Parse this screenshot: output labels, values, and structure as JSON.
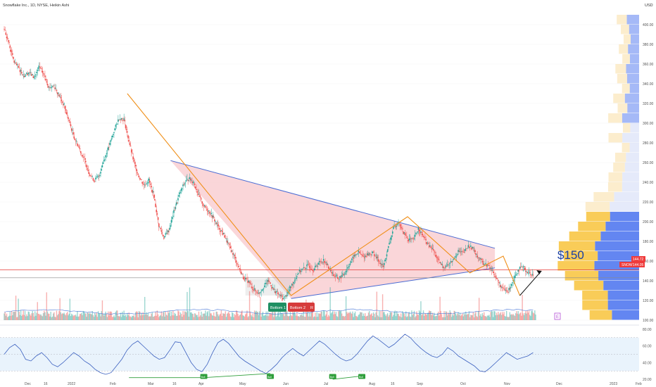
{
  "header": {
    "title": "Snowflake Inc., 1D, NYSE, Heikin Ashi",
    "currency": "USD"
  },
  "price_axis": {
    "ticks": [
      "400.00",
      "380.00",
      "360.00",
      "340.00",
      "320.00",
      "300.00",
      "280.00",
      "260.00",
      "240.00",
      "220.00",
      "200.00",
      "180.00",
      "160.00",
      "140.00",
      "120.00",
      "100.00"
    ]
  },
  "rsi_axis": {
    "ticks": [
      "80.00",
      "60.00",
      "40.00",
      "20.00"
    ]
  },
  "time_axis": {
    "labels": [
      "Dec",
      "16",
      "2022",
      "Feb",
      "Mar",
      "16",
      "Apr",
      "May",
      "Jun",
      "Jul",
      "Aug",
      "16",
      "Sep",
      "Oct",
      "Nov",
      "Dec",
      "2023",
      "Feb"
    ]
  },
  "annotations": {
    "target_label": "$150",
    "bottom1": "Bottom 1",
    "bottom2": "Bottom 2",
    "bottom2_badge": "R",
    "div_badge": "Bull",
    "panel_badge": "E",
    "last_price": "144.72",
    "ticker_badge": "SNOW",
    "second_price": "144.05"
  },
  "colors": {
    "up": "#26a69a",
    "down": "#ef5350",
    "triangle_fill": "#f8c8cc",
    "triangle_line": "#4a6cd4",
    "orange_line": "#f0901a",
    "rsi_line": "#3a5fbf",
    "rsi_band": "#e3f0fb",
    "div_line": "#2e9e3a",
    "hline": "#e53935"
  },
  "chart_data": {
    "type": "candlestick",
    "title": "Snowflake Inc., 1D, NYSE, Heikin Ashi",
    "ylim": [
      95,
      405
    ],
    "rsi_ylim": [
      15,
      85
    ],
    "price_path": [
      [
        0,
        396
      ],
      [
        6,
        380
      ],
      [
        12,
        362
      ],
      [
        18,
        355
      ],
      [
        24,
        348
      ],
      [
        30,
        352
      ],
      [
        36,
        346
      ],
      [
        42,
        357
      ],
      [
        48,
        349
      ],
      [
        54,
        336
      ],
      [
        60,
        338
      ],
      [
        66,
        328
      ],
      [
        72,
        318
      ],
      [
        78,
        302
      ],
      [
        84,
        286
      ],
      [
        90,
        275
      ],
      [
        96,
        264
      ],
      [
        102,
        250
      ],
      [
        108,
        242
      ],
      [
        114,
        246
      ],
      [
        120,
        263
      ],
      [
        126,
        276
      ],
      [
        132,
        292
      ],
      [
        138,
        305
      ],
      [
        144,
        304
      ],
      [
        150,
        282
      ],
      [
        156,
        260
      ],
      [
        162,
        246
      ],
      [
        168,
        237
      ],
      [
        174,
        242
      ],
      [
        180,
        226
      ],
      [
        186,
        196
      ],
      [
        192,
        184
      ],
      [
        198,
        191
      ],
      [
        204,
        210
      ],
      [
        210,
        226
      ],
      [
        216,
        238
      ],
      [
        222,
        244
      ],
      [
        228,
        240
      ],
      [
        234,
        226
      ],
      [
        240,
        216
      ],
      [
        246,
        211
      ],
      [
        252,
        203
      ],
      [
        258,
        194
      ],
      [
        264,
        187
      ],
      [
        270,
        176
      ],
      [
        276,
        166
      ],
      [
        282,
        154
      ],
      [
        288,
        143
      ],
      [
        294,
        139
      ],
      [
        300,
        131
      ],
      [
        306,
        127
      ],
      [
        312,
        134
      ],
      [
        318,
        140
      ],
      [
        324,
        131
      ],
      [
        330,
        126
      ],
      [
        336,
        122
      ],
      [
        342,
        129
      ],
      [
        348,
        139
      ],
      [
        354,
        149
      ],
      [
        360,
        152
      ],
      [
        366,
        156
      ],
      [
        372,
        151
      ],
      [
        378,
        158
      ],
      [
        384,
        161
      ],
      [
        390,
        154
      ],
      [
        396,
        146
      ],
      [
        402,
        142
      ],
      [
        408,
        146
      ],
      [
        414,
        155
      ],
      [
        420,
        164
      ],
      [
        426,
        169
      ],
      [
        432,
        164
      ],
      [
        438,
        167
      ],
      [
        444,
        168
      ],
      [
        450,
        161
      ],
      [
        456,
        154
      ],
      [
        462,
        174
      ],
      [
        468,
        193
      ],
      [
        474,
        200
      ],
      [
        480,
        189
      ],
      [
        486,
        182
      ],
      [
        492,
        181
      ],
      [
        498,
        193
      ],
      [
        504,
        185
      ],
      [
        510,
        176
      ],
      [
        516,
        171
      ],
      [
        522,
        160
      ],
      [
        528,
        154
      ],
      [
        534,
        156
      ],
      [
        540,
        161
      ],
      [
        546,
        170
      ],
      [
        552,
        168
      ],
      [
        558,
        175
      ],
      [
        564,
        173
      ],
      [
        570,
        164
      ],
      [
        576,
        158
      ],
      [
        582,
        155
      ],
      [
        588,
        149
      ],
      [
        594,
        139
      ],
      [
        600,
        131
      ],
      [
        606,
        129
      ],
      [
        612,
        141
      ],
      [
        618,
        151
      ],
      [
        624,
        154
      ],
      [
        630,
        148
      ],
      [
        636,
        146
      ]
    ],
    "price_path_note": "x = trading-day index from the first visible candle (early December 2021), y = price in USD",
    "volume_max_day": 0,
    "hlines": [
      {
        "price": 151
      },
      {
        "price": 143
      }
    ],
    "triangle": {
      "upper": [
        [
          200,
          262
        ],
        [
          590,
          173
        ]
      ],
      "lower": [
        [
          345,
          122
        ],
        [
          590,
          153
        ]
      ],
      "apex_day": 590
    },
    "orange_path": [
      [
        148,
        330
      ],
      [
        345,
        125
      ],
      [
        485,
        205
      ],
      [
        560,
        148
      ],
      [
        600,
        165
      ],
      [
        620,
        125
      ]
    ],
    "arrow": {
      "from": [
        620,
        125
      ],
      "to": [
        646,
        150
      ]
    },
    "rsi": [
      50,
      58,
      62,
      56,
      44,
      42,
      48,
      52,
      46,
      38,
      35,
      40,
      46,
      52,
      48,
      42,
      38,
      32,
      28,
      26,
      28,
      36,
      44,
      55,
      62,
      66,
      60,
      54,
      48,
      44,
      46,
      55,
      65,
      64,
      52,
      40,
      32,
      29,
      38,
      52,
      64,
      68,
      63,
      55,
      47,
      42,
      38,
      34,
      30,
      27,
      32,
      38,
      46,
      52,
      57,
      52,
      48,
      54,
      60,
      66,
      62,
      56,
      50,
      45,
      42,
      44,
      50,
      58,
      66,
      72,
      68,
      63,
      58,
      62,
      68,
      74,
      70,
      63,
      57,
      52,
      48,
      46,
      50,
      58,
      54,
      48,
      44,
      40,
      36,
      30,
      29,
      34,
      40,
      46,
      52,
      48,
      44,
      46,
      48,
      52
    ],
    "rsi_note": "RSI(14) values sampled evenly across the same date span"
  }
}
